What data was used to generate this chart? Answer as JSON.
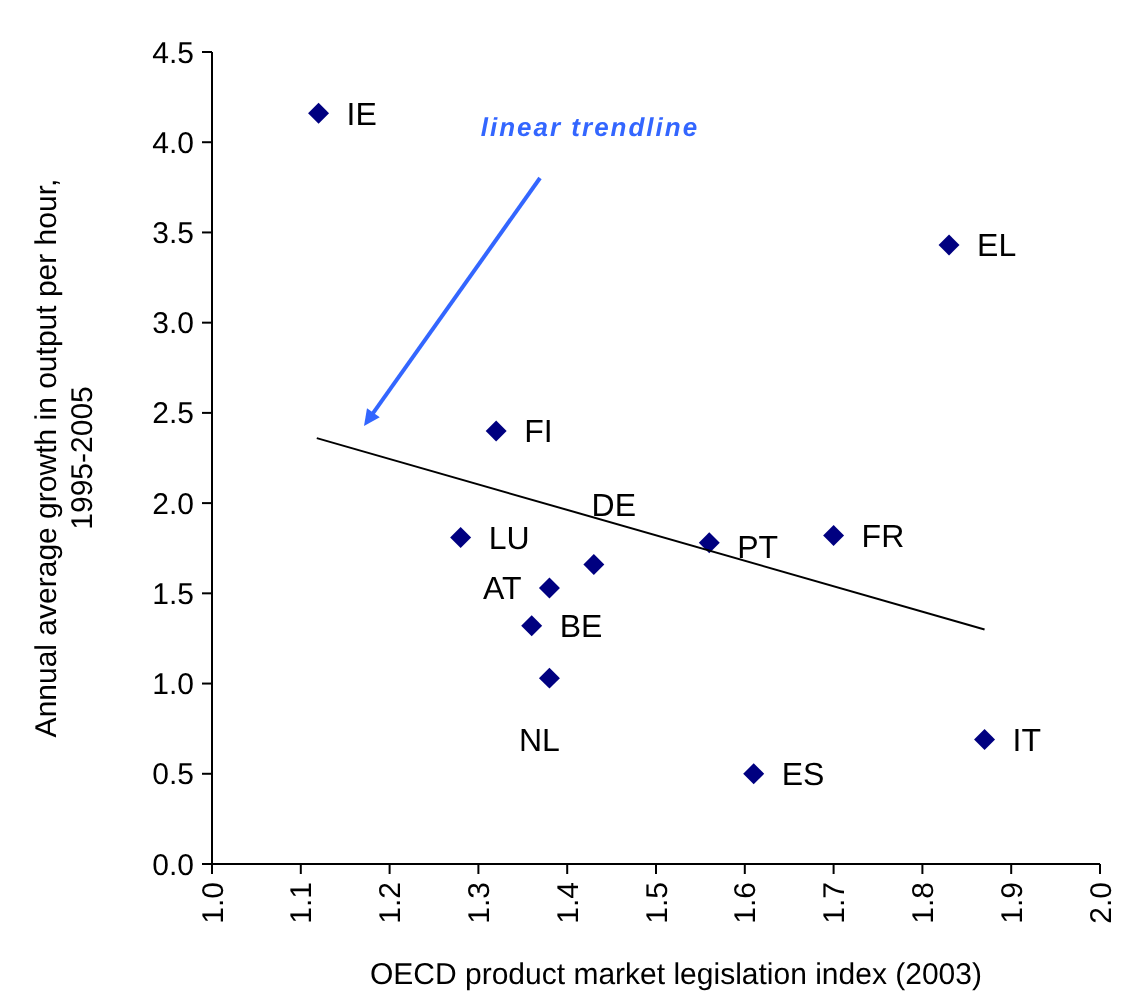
{
  "chart_data": {
    "type": "scatter",
    "xlabel": "OECD product market legislation index (2003)",
    "ylabel": "Annual average growth in output per hour,\n1995-2005",
    "xlim": [
      1.0,
      2.0
    ],
    "xticks": [
      {
        "value": 1.0,
        "label": "1.0"
      },
      1.1,
      1.2,
      1.3,
      1.4,
      1.5,
      1.6,
      1.7,
      1.8,
      1.9,
      {
        "value": 2.0,
        "label": "2.0"
      }
    ],
    "ylim": [
      0,
      4.5
    ],
    "yticks": [
      {
        "value": 0,
        "label": "0.0"
      },
      0.5,
      {
        "value": 1,
        "label": "1.0"
      },
      1.5,
      {
        "value": 2,
        "label": "2.0"
      },
      2.5,
      {
        "value": 3,
        "label": "3.0"
      },
      3.5,
      {
        "value": 4,
        "label": "4.0"
      },
      4.5
    ],
    "grid": false,
    "series": [
      {
        "color": "#000080",
        "marker": "diamond",
        "x": [
          1.12,
          1.83,
          1.32,
          1.28,
          1.43,
          1.38,
          1.36,
          1.38,
          1.56,
          1.7,
          1.61,
          1.87
        ],
        "values": [
          4.16,
          3.43,
          2.4,
          1.81,
          1.66,
          1.53,
          1.32,
          1.03,
          1.78,
          1.82,
          0.5,
          0.69
        ]
      },
      {
        "type": "line",
        "color": "#000000",
        "marker": "none",
        "line_style": "solid",
        "x": [
          1.118,
          1.87
        ],
        "values": [
          2.36,
          1.3
        ]
      }
    ],
    "annotations": [
      {
        "text": "IE",
        "x": 1.12,
        "y": 4.16
      },
      {
        "text": "EL",
        "x": 1.83,
        "y": 3.43
      },
      {
        "text": "FI",
        "x": 1.32,
        "y": 2.4
      },
      {
        "text": "LU",
        "x": 1.28,
        "y": 1.81
      },
      {
        "text": "DE",
        "x": 1.43,
        "y": 1.66
      },
      {
        "text": "AT",
        "x": 1.38,
        "y": 1.53
      },
      {
        "text": "BE",
        "x": 1.36,
        "y": 1.32
      },
      {
        "text": "NL",
        "x": 1.38,
        "y": 1.03
      },
      {
        "text": "PT",
        "x": 1.56,
        "y": 1.78
      },
      {
        "text": "FR",
        "x": 1.7,
        "y": 1.82
      },
      {
        "text": "ES",
        "x": 1.61,
        "y": 0.5
      },
      {
        "text": "IT",
        "x": 1.87,
        "y": 0.69
      },
      "linear trendline"
    ]
  }
}
